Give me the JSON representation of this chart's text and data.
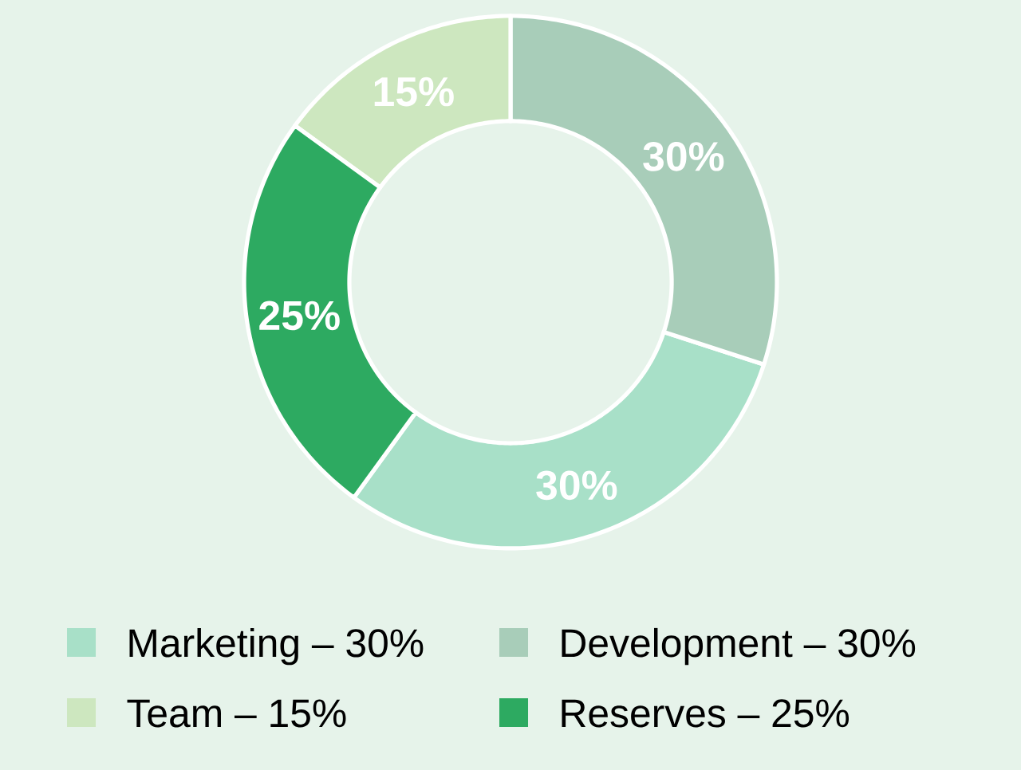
{
  "chart_data": {
    "type": "donut",
    "categories": [
      "Marketing – 30%",
      "Development – 30%",
      "Team – 15%",
      "Reserves – 25%"
    ],
    "values": [
      30,
      30,
      15,
      25
    ],
    "colors": [
      "#a8e0c8",
      "#a8cdb9",
      "#cde7bf",
      "#2daa61"
    ],
    "value_labels": [
      "30%",
      "30%",
      "15%",
      "25%"
    ],
    "legend": "bottom"
  }
}
